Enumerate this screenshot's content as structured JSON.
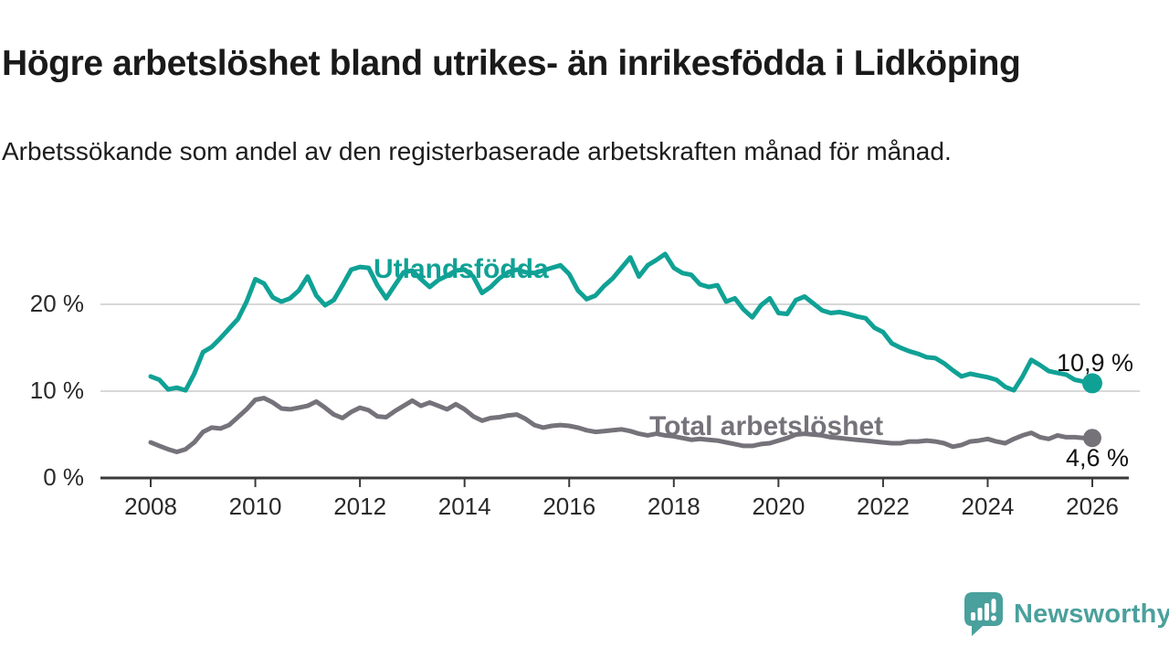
{
  "header": {
    "title": "Högre arbetslöshet bland utrikes- än inrikesfödda i Lidköping",
    "subtitle": "Arbetssökande som andel av den registerbaserade arbetskraften månad för månad."
  },
  "chart_data": {
    "type": "line",
    "title": "Högre arbetslöshet bland utrikes- än inrikesfödda i Lidköping",
    "subtitle": "Arbetssökande som andel av den registerbaserade arbetskraften månad för månad.",
    "unit": "%",
    "grid": "horizontal-gridlines-at-10-and-20",
    "legend_position": "inline-labels-on-lines",
    "xlim": [
      2008,
      2026.6
    ],
    "ylim": [
      0,
      27.5
    ],
    "x_ticks": [
      2008,
      2010,
      2012,
      2014,
      2016,
      2018,
      2020,
      2022,
      2024,
      2026
    ],
    "y_ticks": [
      {
        "value": 0,
        "label": "0 %"
      },
      {
        "value": 10,
        "label": "10 %"
      },
      {
        "value": 20,
        "label": "20 %"
      }
    ],
    "x_start": 2008,
    "x_step_months": 2,
    "series": [
      {
        "id": "utlandsfodda",
        "name": "Utlandsfödda",
        "color": "#10a195",
        "end_label": "10,9 %",
        "end_value": 10.9,
        "values": [
          11.7,
          11.3,
          10.2,
          10.4,
          10.1,
          12.0,
          14.5,
          15.1,
          16.1,
          17.2,
          18.3,
          20.3,
          22.9,
          22.4,
          20.8,
          20.3,
          20.7,
          21.6,
          23.2,
          21.0,
          19.9,
          20.5,
          22.2,
          24.0,
          24.3,
          24.2,
          22.2,
          20.7,
          22.2,
          23.7,
          23.9,
          22.9,
          22.0,
          22.8,
          23.3,
          23.9,
          24.0,
          23.2,
          21.3,
          22.0,
          23.0,
          23.7,
          24.0,
          23.7,
          23.6,
          23.9,
          24.2,
          24.5,
          23.5,
          21.6,
          20.6,
          21.0,
          22.1,
          23.0,
          24.2,
          25.4,
          23.2,
          24.5,
          25.1,
          25.8,
          24.2,
          23.6,
          23.4,
          22.3,
          22.0,
          22.2,
          20.3,
          20.7,
          19.4,
          18.5,
          19.9,
          20.7,
          19.0,
          18.9,
          20.5,
          20.9,
          20.1,
          19.3,
          19.0,
          19.1,
          18.9,
          18.6,
          18.4,
          17.3,
          16.8,
          15.5,
          15.0,
          14.6,
          14.3,
          13.9,
          13.8,
          13.2,
          12.4,
          11.7,
          12.0,
          11.8,
          11.6,
          11.3,
          10.5,
          10.1,
          11.7,
          13.6,
          13.0,
          12.3,
          12.1,
          11.9,
          11.3,
          11.1,
          10.9
        ]
      },
      {
        "id": "total-arbetsloshet",
        "name": "Total arbetslöshet",
        "color": "#75727a",
        "end_label": "4,6 %",
        "end_value": 4.6,
        "values": [
          4.1,
          3.7,
          3.3,
          3.0,
          3.3,
          4.1,
          5.3,
          5.8,
          5.7,
          6.1,
          7.0,
          7.9,
          9.0,
          9.2,
          8.7,
          8.0,
          7.9,
          8.1,
          8.3,
          8.8,
          8.1,
          7.3,
          6.9,
          7.6,
          8.1,
          7.8,
          7.1,
          7.0,
          7.7,
          8.3,
          8.9,
          8.3,
          8.7,
          8.3,
          7.9,
          8.5,
          7.9,
          7.1,
          6.6,
          6.9,
          7.0,
          7.2,
          7.3,
          6.8,
          6.1,
          5.8,
          6.0,
          6.1,
          6.0,
          5.8,
          5.5,
          5.3,
          5.4,
          5.5,
          5.6,
          5.4,
          5.1,
          4.9,
          5.1,
          4.9,
          4.8,
          4.6,
          4.4,
          4.5,
          4.4,
          4.3,
          4.1,
          3.9,
          3.7,
          3.7,
          3.9,
          4.0,
          4.3,
          4.6,
          5.0,
          5.1,
          5.0,
          4.9,
          4.7,
          4.6,
          4.5,
          4.4,
          4.3,
          4.2,
          4.1,
          4.0,
          4.0,
          4.2,
          4.2,
          4.3,
          4.2,
          4.0,
          3.6,
          3.8,
          4.2,
          4.3,
          4.5,
          4.2,
          4.0,
          4.5,
          4.9,
          5.2,
          4.7,
          4.5,
          4.9,
          4.7,
          4.7,
          4.6,
          4.6
        ]
      }
    ],
    "colors": {
      "accent_teal": "#10a195",
      "line_gray": "#75727a",
      "gridline": "#d8d8d8",
      "axis": "#3a3a3a",
      "text": "#2a2a2a",
      "brand_teal": "#4aa09c"
    }
  },
  "footer": {
    "brand": "Newsworthy"
  }
}
